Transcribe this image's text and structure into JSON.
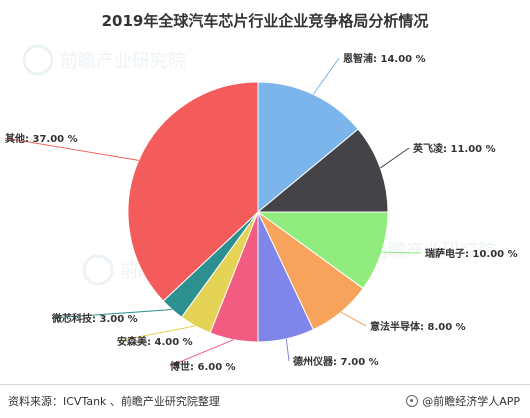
{
  "title": "2019年全球汽车芯片行业企业竞争格局分析情况",
  "chart_data": {
    "type": "pie",
    "title": "2019年全球汽车芯片行业企业竞争格局分析情况",
    "slices": [
      {
        "name": "恩智浦",
        "value": 14.0,
        "label": "恩智浦: 14.00 %",
        "color": "#7cb5ec"
      },
      {
        "name": "英飞凌",
        "value": 11.0,
        "label": "英飞凌: 11.00 %",
        "color": "#434348"
      },
      {
        "name": "瑞萨电子",
        "value": 10.0,
        "label": "瑞萨电子: 10.00 %",
        "color": "#90ed7d"
      },
      {
        "name": "意法半导体",
        "value": 8.0,
        "label": "意法半导体: 8.00 %",
        "color": "#f7a35c"
      },
      {
        "name": "德州仪器",
        "value": 7.0,
        "label": "德州仪器: 7.00 %",
        "color": "#8085e9"
      },
      {
        "name": "博世",
        "value": 6.0,
        "label": "博世: 6.00 %",
        "color": "#f15c80"
      },
      {
        "name": "安森美",
        "value": 4.0,
        "label": "安森美: 4.00 %",
        "color": "#e4d354"
      },
      {
        "name": "微芯科技",
        "value": 3.0,
        "label": "微芯科技: 3.00 %",
        "color": "#2b908f"
      },
      {
        "name": "其他",
        "value": 37.0,
        "label": "其他: 37.00 %",
        "color": "#f45b5b"
      }
    ]
  },
  "footer": {
    "source": "资料来源：ICVTank 、前瞻产业研究院整理",
    "brand": "@前瞻经济学人APP"
  },
  "watermark": {
    "text": "前瞻产业研究院"
  }
}
